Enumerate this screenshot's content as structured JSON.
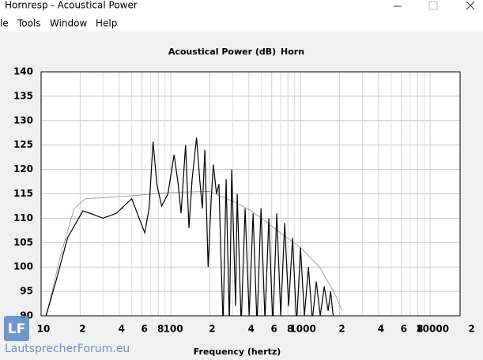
{
  "window": {
    "title": "Hornresp - Acoustical Power",
    "menu": [
      "le",
      "Tools",
      "Window",
      "Help"
    ]
  },
  "watermark": {
    "logo": "LF",
    "text": "LautsprecherForum.eu"
  },
  "chart_data": {
    "type": "line",
    "title": "Acoustical Power (dB)",
    "subtitle": "Horn",
    "x_label": "Frequency (hertz)",
    "log_x": true,
    "grid": true,
    "xlim": [
      10,
      17000
    ],
    "xticks": [
      10,
      {
        "value": 20,
        "label": "2"
      },
      {
        "value": 40,
        "label": "4"
      },
      {
        "value": 60,
        "label": "6"
      },
      {
        "value": 80,
        "label": "8"
      },
      100,
      {
        "value": 200,
        "label": "2"
      },
      {
        "value": 400,
        "label": "4"
      },
      {
        "value": 600,
        "label": "6"
      },
      {
        "value": 800,
        "label": "8"
      },
      1000,
      {
        "value": 2000,
        "label": "2"
      },
      {
        "value": 4000,
        "label": "4"
      },
      {
        "value": 6000,
        "label": "6"
      },
      {
        "value": 8000,
        "label": "8"
      },
      10000,
      {
        "value": 20000,
        "label": "2"
      }
    ],
    "xminorticks": [
      30,
      50,
      70,
      90,
      300,
      500,
      700,
      900,
      3000,
      5000,
      7000,
      9000
    ],
    "ylim": [
      90,
      140
    ],
    "yticks": [
      90,
      95,
      100,
      105,
      110,
      115,
      120,
      125,
      130,
      135,
      140
    ],
    "series": [
      {
        "color": "#999999",
        "x": [
          11,
          14,
          18,
          22,
          30,
          50,
          100,
          200,
          300,
          400,
          500,
          700,
          1000,
          1400,
          1800,
          2100
        ],
        "values": [
          90,
          102,
          112,
          114,
          114.2,
          114.6,
          115.3,
          115.5,
          113.5,
          111.8,
          110,
          107,
          104,
          100,
          95,
          91
        ]
      },
      {
        "color": "#000000",
        "x": [
          10.9,
          13,
          16,
          21,
          25,
          30,
          38,
          50,
          57,
          63,
          68,
          73,
          78,
          85,
          95,
          106,
          114,
          120,
          130,
          138,
          146,
          158,
          167,
          175,
          183,
          194,
          205,
          213,
          225,
          235,
          245,
          253,
          267,
          283,
          295,
          316,
          325,
          349,
          374,
          402,
          431,
          462,
          496,
          532,
          570,
          612,
          656,
          704,
          755,
          810,
          869,
          933,
          1000,
          1072,
          1151,
          1234,
          1324,
          1420,
          1524,
          1634,
          1706,
          1803
        ],
        "values": [
          90,
          97,
          106,
          111.5,
          110.8,
          110,
          111,
          114,
          110,
          107,
          112,
          125.7,
          117,
          112.5,
          115,
          123,
          117,
          111,
          125,
          108,
          118,
          126.5,
          118,
          112,
          124,
          100,
          114,
          121,
          115,
          117,
          100,
          88,
          118,
          88,
          120,
          92,
          115,
          88,
          112,
          90,
          111,
          88,
          112,
          89,
          110,
          88,
          111,
          90,
          109,
          92,
          106,
          88,
          104,
          90,
          100,
          89,
          97,
          90,
          96,
          91,
          95,
          89
        ]
      }
    ]
  }
}
